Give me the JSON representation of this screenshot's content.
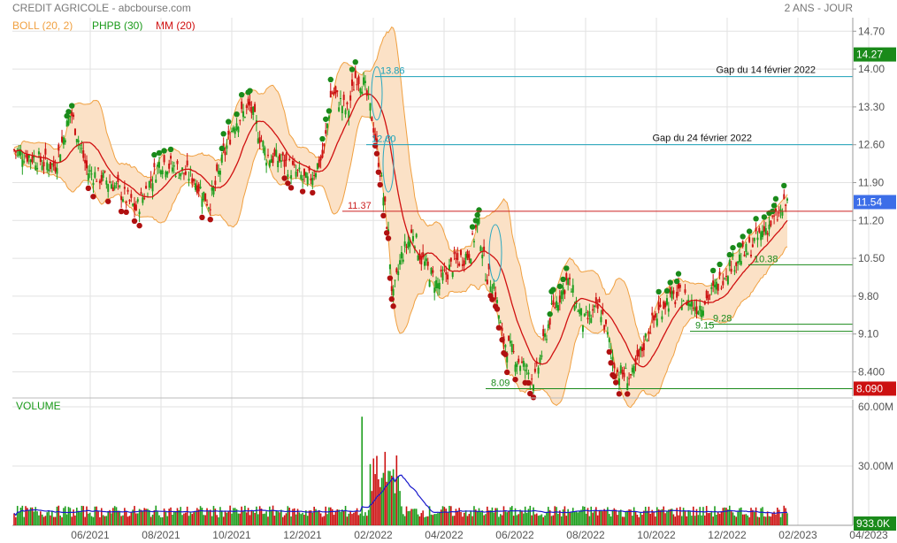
{
  "header": {
    "title": "CREDIT AGRICOLE - abcbourse.com",
    "period": "2 ANS - JOUR"
  },
  "legend": [
    {
      "label": "BOLL (20, 2)",
      "color": "#f0a040"
    },
    {
      "label": "PHPB (30)",
      "color": "#1a9a1a"
    },
    {
      "label": "MM (20)",
      "color": "#d01010"
    }
  ],
  "volume_panel": {
    "label": "VOLUME"
  },
  "colors": {
    "up": "#1e9e1e",
    "down": "#cc1111",
    "boll_fill": "#fbe1c6",
    "boll_line": "#f0a040",
    "ma": "#d01010",
    "grid": "#e2e2e2",
    "vol_line": "#1a1acc",
    "cyan": "#2aa8c0"
  },
  "chart_data": {
    "type": "candlestick",
    "x_ticks": [
      "06/2021",
      "08/2021",
      "10/2021",
      "12/2021",
      "02/2022",
      "04/2022",
      "06/2022",
      "08/2022",
      "10/2022",
      "12/2022",
      "02/2023",
      "04/2023"
    ],
    "y_ticks": [
      "14.70",
      "14.00",
      "13.30",
      "12.60",
      "11.90",
      "11.20",
      "10.50",
      "9.80",
      "9.10",
      "8.400"
    ],
    "y_range": [
      7.95,
      14.95
    ],
    "price_badges": [
      {
        "value": "14.27",
        "color": "#1a8a1a"
      },
      {
        "value": "11.54",
        "color": "#3c6ee8"
      },
      {
        "value": "8.090",
        "color": "#cc1111"
      }
    ],
    "horizontal_levels": [
      {
        "value": 13.86,
        "label": "13.86",
        "color": "#1aa0b8"
      },
      {
        "value": 12.6,
        "label": "12.60",
        "color": "#1aa0b8"
      },
      {
        "value": 11.37,
        "label": "11.37",
        "color": "#cc2222"
      },
      {
        "value": 10.38,
        "label": "10.38",
        "color": "#1a8a1a"
      },
      {
        "value": 9.28,
        "label": "9.28",
        "color": "#1a8a1a"
      },
      {
        "value": 9.15,
        "label": "9.15",
        "color": "#1a8a1a"
      },
      {
        "value": 8.09,
        "label": "8.09",
        "color": "#1a8a1a"
      }
    ],
    "annotations": [
      {
        "text": "Gap du 14 février 2022"
      },
      {
        "text": "Gap du 24 février 2022"
      }
    ],
    "price_path": [
      [
        0,
        12.5
      ],
      [
        0.05,
        12.2
      ],
      [
        0.07,
        13.2
      ],
      [
        0.09,
        12.1
      ],
      [
        0.12,
        11.9
      ],
      [
        0.15,
        11.4
      ],
      [
        0.18,
        12.3
      ],
      [
        0.22,
        12.0
      ],
      [
        0.24,
        11.5
      ],
      [
        0.27,
        13.0
      ],
      [
        0.29,
        13.3
      ],
      [
        0.31,
        12.4
      ],
      [
        0.33,
        12.3
      ],
      [
        0.36,
        11.9
      ],
      [
        0.38,
        12.4
      ],
      [
        0.39,
        13.6
      ],
      [
        0.41,
        13.2
      ],
      [
        0.42,
        13.9
      ],
      [
        0.43,
        13.7
      ],
      [
        0.44,
        13.1
      ],
      [
        0.45,
        12.1
      ],
      [
        0.46,
        10.9
      ],
      [
        0.465,
        9.7
      ],
      [
        0.475,
        10.5
      ],
      [
        0.49,
        11.0
      ],
      [
        0.5,
        10.5
      ],
      [
        0.52,
        10.0
      ],
      [
        0.54,
        10.4
      ],
      [
        0.56,
        10.6
      ],
      [
        0.57,
        11.2
      ],
      [
        0.58,
        10.2
      ],
      [
        0.59,
        10.0
      ],
      [
        0.6,
        9.0
      ],
      [
        0.62,
        8.6
      ],
      [
        0.64,
        8.25
      ],
      [
        0.66,
        9.5
      ],
      [
        0.68,
        10.1
      ],
      [
        0.7,
        9.3
      ],
      [
        0.72,
        9.6
      ],
      [
        0.74,
        8.4
      ],
      [
        0.76,
        8.3
      ],
      [
        0.78,
        9.2
      ],
      [
        0.8,
        9.7
      ],
      [
        0.82,
        9.8
      ],
      [
        0.84,
        9.6
      ],
      [
        0.86,
        9.9
      ],
      [
        0.88,
        10.4
      ],
      [
        0.9,
        10.6
      ],
      [
        0.92,
        11.0
      ],
      [
        0.94,
        11.3
      ],
      [
        0.95,
        11.54
      ]
    ],
    "volume_y_ticks": [
      "60.00M",
      "30.00M"
    ],
    "volume_badge": "933.0K",
    "volume_range": [
      0,
      60
    ]
  }
}
